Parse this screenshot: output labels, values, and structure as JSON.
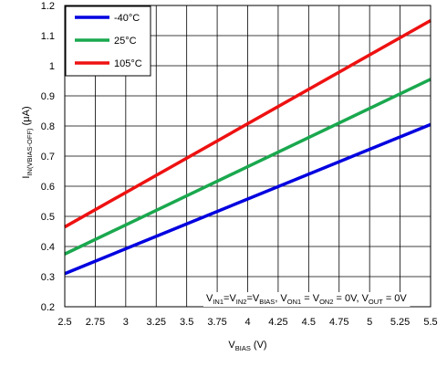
{
  "chart_data": {
    "type": "line",
    "title": "",
    "xlabel": {
      "main": "V",
      "sub": "BIAS",
      "unit": " (V)"
    },
    "ylabel": {
      "main": "I",
      "sub": "IN(VBIAS-OFF)",
      "unit": " (μA)"
    },
    "xlim": [
      2.5,
      5.5
    ],
    "ylim": [
      0.2,
      1.2
    ],
    "xticks": [
      "2.5",
      "2.75",
      "3",
      "3.25",
      "3.5",
      "3.75",
      "4",
      "4.25",
      "4.5",
      "4.75",
      "5",
      "5.25",
      "5.5"
    ],
    "yticks": [
      "0.2",
      "0.3",
      "0.4",
      "0.5",
      "0.6",
      "0.7",
      "0.8",
      "0.9",
      "1",
      "1.1",
      "1.2"
    ],
    "grid": true,
    "legend_position": "top-left",
    "series": [
      {
        "name": "-40°C",
        "color": "#0000e0",
        "x": [
          2.5,
          5.5
        ],
        "y": [
          0.31,
          0.805
        ]
      },
      {
        "name": "25°C",
        "color": "#1aa84e",
        "x": [
          2.5,
          5.5
        ],
        "y": [
          0.375,
          0.955
        ]
      },
      {
        "name": "105°C",
        "color": "#ee1111",
        "x": [
          2.5,
          5.5
        ],
        "y": [
          0.465,
          1.15
        ]
      }
    ],
    "annotation": [
      {
        "t": "V",
        "s": false
      },
      {
        "t": "IN1",
        "s": true
      },
      {
        "t": "=V",
        "s": false
      },
      {
        "t": "IN2",
        "s": true
      },
      {
        "t": "=V",
        "s": false
      },
      {
        "t": "BIAS",
        "s": true
      },
      {
        "t": ", V",
        "s": false
      },
      {
        "t": "ON1",
        "s": true
      },
      {
        "t": " = V",
        "s": false
      },
      {
        "t": "ON2",
        "s": true
      },
      {
        "t": " = 0V, V",
        "s": false
      },
      {
        "t": "OUT",
        "s": true
      },
      {
        "t": " = 0V",
        "s": false
      }
    ]
  }
}
